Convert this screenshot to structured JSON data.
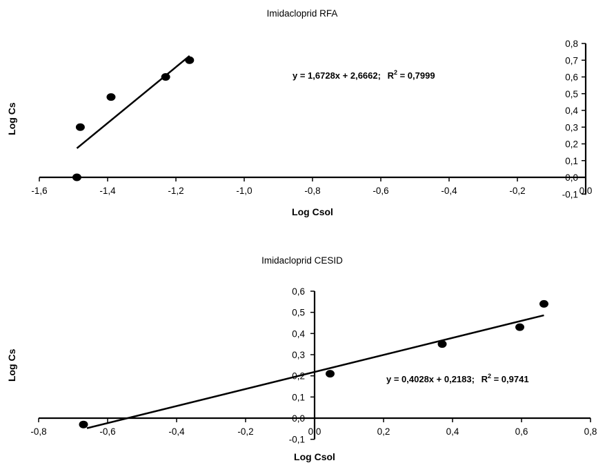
{
  "chart_data": [
    {
      "type": "scatter",
      "title": "Imidacloprid RFA",
      "xlabel": "Log Csol",
      "ylabel": "Log Cs",
      "xlim": [
        -1.6,
        0.0
      ],
      "ylim": [
        -0.1,
        0.8
      ],
      "x_ticks": [
        -1.6,
        -1.4,
        -1.2,
        -1.0,
        -0.8,
        -0.6,
        -0.4,
        -0.2,
        0.0
      ],
      "x_tick_labels": [
        "-1,6",
        "-1,4",
        "-1,2",
        "-1,0",
        "-0,8",
        "-0,6",
        "-0,4",
        "-0,2",
        "0,0"
      ],
      "y_ticks": [
        -0.1,
        0.0,
        0.1,
        0.2,
        0.3,
        0.4,
        0.5,
        0.6,
        0.7,
        0.8
      ],
      "y_tick_labels": [
        "-0,1",
        "0,0",
        "0,1",
        "0,2",
        "0,3",
        "0,4",
        "0,5",
        "0,6",
        "0,7",
        "0,8"
      ],
      "grid": false,
      "points": [
        {
          "x": -1.49,
          "y": 0.0
        },
        {
          "x": -1.48,
          "y": 0.3
        },
        {
          "x": -1.39,
          "y": 0.48
        },
        {
          "x": -1.23,
          "y": 0.6
        },
        {
          "x": -1.16,
          "y": 0.7
        }
      ],
      "trendline": {
        "slope": 1.6728,
        "intercept": 2.6662,
        "x_range": [
          -1.49,
          -1.16
        ]
      },
      "equation": "y = 1,6728x + 2,6662;",
      "r_squared": "R",
      "r2_sup": "2",
      "r2_value": " = 0,7999"
    },
    {
      "type": "scatter",
      "title": "Imidacloprid CESID",
      "xlabel": "Log Csol",
      "ylabel": "Log Cs",
      "xlim": [
        -0.8,
        0.8
      ],
      "ylim": [
        -0.1,
        0.6
      ],
      "x_ticks": [
        -0.8,
        -0.6,
        -0.4,
        -0.2,
        0.0,
        0.2,
        0.4,
        0.6,
        0.8
      ],
      "x_tick_labels": [
        "-0,8",
        "-0,6",
        "-0,4",
        "-0,2",
        "0,0",
        "0,2",
        "0,4",
        "0,6",
        "0,8"
      ],
      "y_ticks": [
        -0.1,
        0.0,
        0.1,
        0.2,
        0.3,
        0.4,
        0.5,
        0.6
      ],
      "y_tick_labels": [
        "-0,1",
        "0,0",
        "0,1",
        "0,2",
        "0,3",
        "0,4",
        "0,5",
        "0,6"
      ],
      "grid": false,
      "points": [
        {
          "x": -0.67,
          "y": -0.03
        },
        {
          "x": 0.045,
          "y": 0.21
        },
        {
          "x": 0.37,
          "y": 0.35
        },
        {
          "x": 0.595,
          "y": 0.43
        },
        {
          "x": 0.665,
          "y": 0.54
        }
      ],
      "trendline": {
        "slope": 0.4028,
        "intercept": 0.2183,
        "x_range": [
          -0.66,
          0.665
        ]
      },
      "equation": "y = 0,4028x + 0,2183;",
      "r_squared": "R",
      "r2_sup": "2",
      "r2_value": " = 0,9741"
    }
  ]
}
